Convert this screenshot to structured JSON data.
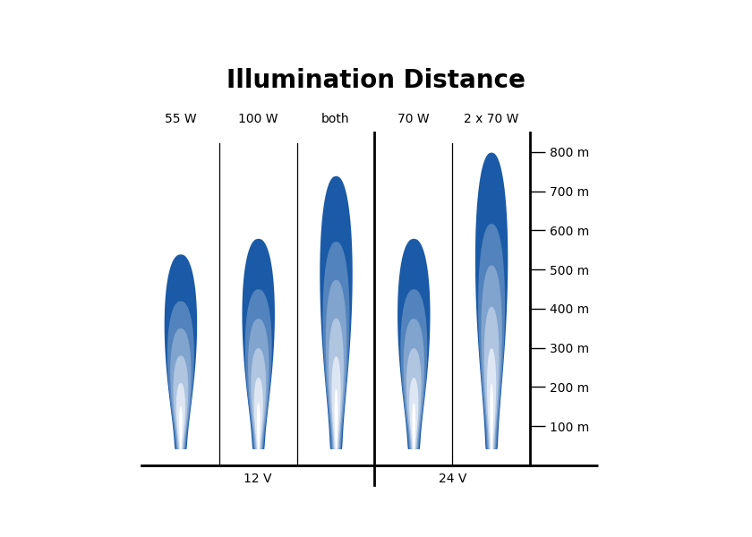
{
  "chart_data": {
    "type": "bar",
    "title": "Illumination Distance",
    "categories": [
      "55 W",
      "100 W",
      "both",
      "70 W",
      "2 x 70 W"
    ],
    "values": [
      540,
      580,
      740,
      580,
      800
    ],
    "color": "#1a5aa6",
    "ylim": [
      0,
      850
    ],
    "yticks": [
      {
        "value": 100,
        "label": "100 m"
      },
      {
        "value": 200,
        "label": "200 m"
      },
      {
        "value": 300,
        "label": "300 m"
      },
      {
        "value": 400,
        "label": "400 m"
      },
      {
        "value": 500,
        "label": "500 m"
      },
      {
        "value": 600,
        "label": "600 m"
      },
      {
        "value": 700,
        "label": "700 m"
      },
      {
        "value": 800,
        "label": "800 m"
      }
    ],
    "groups": [
      {
        "name": "12 V",
        "count": 3
      },
      {
        "name": "24 V",
        "count": 2
      }
    ],
    "grid": false
  }
}
